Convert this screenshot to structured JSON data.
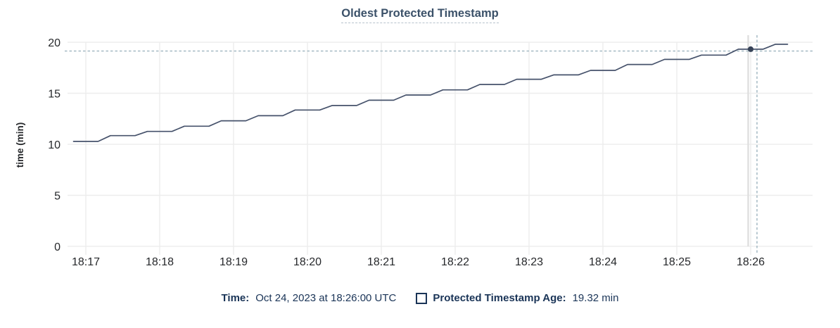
{
  "title": "Oldest Protected Timestamp",
  "y_axis": {
    "label": "time (min)",
    "ticks": [
      0,
      5,
      10,
      15,
      20
    ]
  },
  "x_axis": {
    "ticks": [
      "18:17",
      "18:18",
      "18:19",
      "18:20",
      "18:21",
      "18:22",
      "18:23",
      "18:24",
      "18:25",
      "18:26"
    ]
  },
  "legend": {
    "time_label": "Time:",
    "time_value": "Oct 24, 2023 at 18:26:00 UTC",
    "series_label": "Protected Timestamp Age:",
    "series_value": "19.32 min"
  },
  "colors": {
    "line": "#46526b",
    "dot": "#364257",
    "crosshair": "#a4b9c3",
    "hover_line": "#e0e0e0",
    "grid_horizontal": "#ededed",
    "grid_vertical": "#ececec",
    "axis_text": "#26282b",
    "title_text": "#3b5169",
    "legend_text": "#1a3457",
    "title_underline": "#b7c2cd"
  },
  "chart_data": {
    "type": "line",
    "title": "Oldest Protected Timestamp",
    "xlabel": "",
    "ylabel": "time (min)",
    "ylim": [
      0,
      20
    ],
    "y_ticks": [
      0,
      5,
      10,
      15,
      20
    ],
    "x_ticks": [
      "18:17",
      "18:18",
      "18:19",
      "18:20",
      "18:21",
      "18:22",
      "18:23",
      "18:24",
      "18:25",
      "18:26"
    ],
    "grid": true,
    "legend_position": "bottom",
    "series": [
      {
        "name": "Protected Timestamp Age",
        "unit": "min",
        "points": [
          [
            "18:16:50",
            10.28
          ],
          [
            "18:17:00",
            10.28
          ],
          [
            "18:17:10",
            10.28
          ],
          [
            "18:17:20",
            10.85
          ],
          [
            "18:17:30",
            10.85
          ],
          [
            "18:17:40",
            10.85
          ],
          [
            "18:17:50",
            11.26
          ],
          [
            "18:18:00",
            11.26
          ],
          [
            "18:18:10",
            11.26
          ],
          [
            "18:18:20",
            11.77
          ],
          [
            "18:18:30",
            11.77
          ],
          [
            "18:18:40",
            11.77
          ],
          [
            "18:18:50",
            12.3
          ],
          [
            "18:19:00",
            12.3
          ],
          [
            "18:19:10",
            12.3
          ],
          [
            "18:19:20",
            12.8
          ],
          [
            "18:19:30",
            12.8
          ],
          [
            "18:19:40",
            12.8
          ],
          [
            "18:19:50",
            13.36
          ],
          [
            "18:20:00",
            13.36
          ],
          [
            "18:20:10",
            13.36
          ],
          [
            "18:20:20",
            13.8
          ],
          [
            "18:20:30",
            13.8
          ],
          [
            "18:20:40",
            13.8
          ],
          [
            "18:20:50",
            14.32
          ],
          [
            "18:21:00",
            14.32
          ],
          [
            "18:21:10",
            14.32
          ],
          [
            "18:21:20",
            14.83
          ],
          [
            "18:21:30",
            14.83
          ],
          [
            "18:21:40",
            14.83
          ],
          [
            "18:21:50",
            15.33
          ],
          [
            "18:22:00",
            15.33
          ],
          [
            "18:22:10",
            15.33
          ],
          [
            "18:22:20",
            15.86
          ],
          [
            "18:22:30",
            15.86
          ],
          [
            "18:22:40",
            15.86
          ],
          [
            "18:22:50",
            16.37
          ],
          [
            "18:23:00",
            16.37
          ],
          [
            "18:23:10",
            16.37
          ],
          [
            "18:23:20",
            16.8
          ],
          [
            "18:23:30",
            16.8
          ],
          [
            "18:23:40",
            16.8
          ],
          [
            "18:23:50",
            17.24
          ],
          [
            "18:24:00",
            17.24
          ],
          [
            "18:24:10",
            17.24
          ],
          [
            "18:24:20",
            17.82
          ],
          [
            "18:24:30",
            17.82
          ],
          [
            "18:24:40",
            17.82
          ],
          [
            "18:24:50",
            18.32
          ],
          [
            "18:25:00",
            18.32
          ],
          [
            "18:25:10",
            18.32
          ],
          [
            "18:25:20",
            18.74
          ],
          [
            "18:25:30",
            18.74
          ],
          [
            "18:25:40",
            18.74
          ],
          [
            "18:25:50",
            19.32
          ],
          [
            "18:26:00",
            19.32
          ],
          [
            "18:26:10",
            19.32
          ],
          [
            "18:26:20",
            19.8
          ],
          [
            "18:26:30",
            19.8
          ]
        ]
      }
    ],
    "highlight": {
      "time": "18:26:00",
      "value": 19.32,
      "time_display": "Oct 24, 2023 at 18:26:00 UTC"
    }
  }
}
